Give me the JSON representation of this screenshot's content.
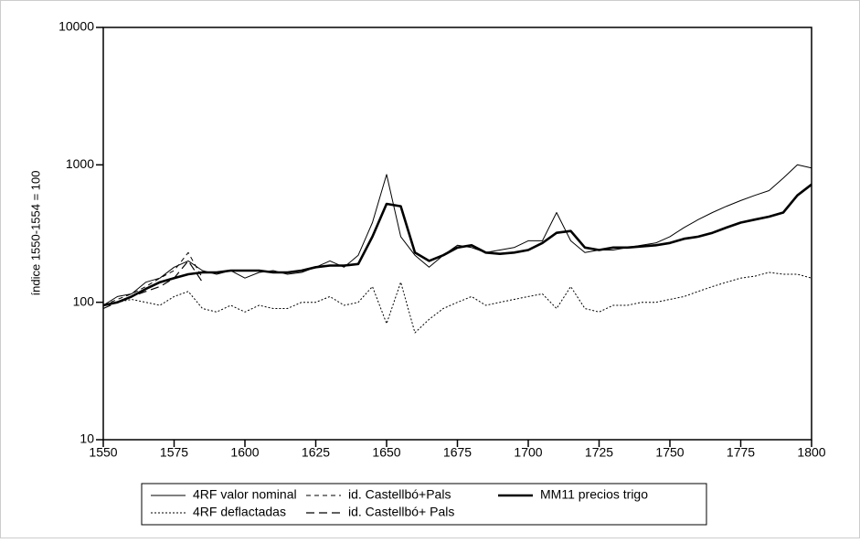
{
  "chart_data": {
    "type": "line",
    "y_label": "índice 1550-1554 = 100",
    "yscale": "log",
    "x": [
      1550,
      1555,
      1560,
      1565,
      1570,
      1575,
      1580,
      1585,
      1590,
      1595,
      1600,
      1605,
      1610,
      1615,
      1620,
      1625,
      1630,
      1635,
      1640,
      1645,
      1650,
      1655,
      1660,
      1665,
      1670,
      1675,
      1680,
      1685,
      1690,
      1695,
      1700,
      1705,
      1710,
      1715,
      1720,
      1725,
      1730,
      1735,
      1740,
      1745,
      1750,
      1755,
      1760,
      1765,
      1770,
      1775,
      1780,
      1785,
      1790,
      1795,
      1800
    ],
    "xlim": [
      1550,
      1800
    ],
    "xticks": [
      1550,
      1575,
      1600,
      1625,
      1650,
      1675,
      1700,
      1725,
      1750,
      1775,
      1800
    ],
    "ylim": [
      10,
      10000
    ],
    "yticks": [
      10,
      100,
      1000,
      10000
    ],
    "series": [
      {
        "name": "4RF valor nominal",
        "color": "#000000",
        "values": [
          95,
          110,
          115,
          140,
          150,
          180,
          200,
          170,
          160,
          170,
          150,
          165,
          170,
          160,
          165,
          180,
          200,
          180,
          220,
          380,
          850,
          300,
          220,
          180,
          220,
          260,
          250,
          230,
          240,
          250,
          280,
          280,
          450,
          280,
          230,
          240,
          240,
          250,
          260,
          270,
          300,
          350,
          400,
          450,
          500,
          550,
          600,
          650,
          800,
          1000,
          950
        ]
      },
      {
        "name": "id. Castellbó+Pals",
        "color": "#000000",
        "values": [
          95,
          105,
          115,
          130,
          150,
          170,
          230,
          150,
          null,
          null,
          null,
          null,
          null,
          null,
          null,
          null,
          null,
          null,
          null,
          null,
          null,
          null,
          null,
          null,
          null,
          null,
          null,
          null,
          null,
          null,
          null,
          null,
          null,
          null,
          null,
          null,
          null,
          null,
          null,
          null,
          null,
          null,
          null,
          null,
          null,
          null,
          null,
          null,
          null,
          null,
          null
        ]
      },
      {
        "name": "MM11 precios trigo",
        "color": "#000000",
        "values": [
          95,
          100,
          110,
          125,
          140,
          150,
          160,
          165,
          165,
          170,
          170,
          170,
          165,
          165,
          170,
          180,
          185,
          185,
          190,
          300,
          520,
          500,
          230,
          200,
          220,
          250,
          260,
          230,
          225,
          230,
          240,
          270,
          320,
          330,
          250,
          240,
          250,
          250,
          255,
          260,
          270,
          290,
          300,
          320,
          350,
          380,
          400,
          420,
          450,
          600,
          720
        ]
      },
      {
        "name": "4RF deflactadas",
        "color": "#000000",
        "values": [
          95,
          100,
          105,
          100,
          95,
          110,
          120,
          90,
          85,
          95,
          85,
          95,
          90,
          90,
          100,
          100,
          110,
          95,
          100,
          130,
          70,
          140,
          60,
          75,
          90,
          100,
          110,
          95,
          100,
          105,
          110,
          115,
          90,
          130,
          90,
          85,
          95,
          95,
          100,
          100,
          105,
          110,
          120,
          130,
          140,
          150,
          155,
          165,
          160,
          160,
          150
        ]
      },
      {
        "name": "id. Castellbó+ Pals",
        "color": "#000000",
        "values": [
          90,
          100,
          110,
          120,
          130,
          150,
          200,
          140,
          null,
          null,
          null,
          null,
          null,
          null,
          null,
          null,
          null,
          null,
          null,
          null,
          null,
          null,
          null,
          null,
          null,
          null,
          null,
          null,
          null,
          null,
          null,
          null,
          null,
          null,
          null,
          null,
          null,
          null,
          null,
          null,
          null,
          null,
          null,
          null,
          null,
          null,
          null,
          null,
          null,
          null,
          null
        ]
      }
    ]
  }
}
